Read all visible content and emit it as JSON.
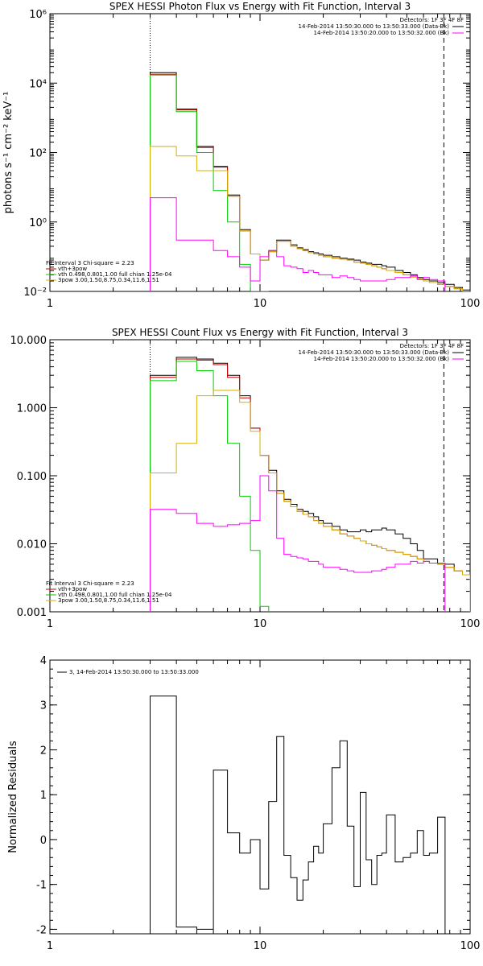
{
  "chart_data": [
    {
      "type": "line",
      "title": "SPEX HESSI Photon Flux vs Energy with Fit Function, Interval 3",
      "xlabel": "",
      "ylabel": "photons s⁻¹ cm⁻² keV⁻¹",
      "xscale": "log",
      "yscale": "log",
      "xlim": [
        1,
        100
      ],
      "ylim": [
        0.01,
        1000000
      ],
      "x_ticks": [
        1,
        10,
        100
      ],
      "x_tick_labels": [
        "1",
        "10",
        "100"
      ],
      "y_ticks": [
        0.01,
        1,
        100,
        10000,
        1000000
      ],
      "y_tick_labels": [
        "10⁻²",
        "10⁰",
        "10²",
        "10⁴",
        "10⁶"
      ],
      "edges": [
        3,
        4,
        5,
        6,
        7,
        8,
        9,
        10,
        11,
        12,
        13,
        14,
        15,
        16,
        17,
        18,
        19,
        20,
        22,
        24,
        26,
        28,
        30,
        32,
        34,
        36,
        38,
        40,
        44,
        48,
        52,
        56,
        60,
        64,
        70,
        76,
        84,
        92,
        100
      ],
      "vlines": [
        {
          "x": 3,
          "style": "dotted"
        },
        {
          "x": 75,
          "style": "dashed"
        }
      ],
      "legend_header": [
        "Detectors: 1F 3F 4F 8F"
      ],
      "legend": [
        {
          "text": "14-Feb-2014 13:50:30.000 to 13:50:33.000 (Data-Bk)",
          "color": "#000000"
        },
        {
          "text": "14-Feb-2014 13:50:20.000 to 13:50:32.000 (Bk)",
          "color": "#ff00ff"
        }
      ],
      "fit_info": {
        "title": "Fit Interval 3    Chi-square = 2.23",
        "lines": [
          {
            "text": "vth+3pow",
            "color": "#cc0000"
          },
          {
            "text": "vth 0.498,0.801,1.00  full chian 1.25e-04",
            "color": "#00cc00"
          },
          {
            "text": "3pow 3.00,1.50,8.75,0.34,11.6,1.51",
            "color": "#d4b000"
          }
        ]
      },
      "series": [
        {
          "color": "#000000",
          "values": [
            20000,
            1800,
            150,
            40,
            6,
            0.6,
            0.12,
            0.08,
            0.15,
            0.3,
            0.3,
            0.22,
            0.18,
            0.16,
            0.14,
            0.13,
            0.12,
            0.11,
            0.1,
            0.09,
            0.085,
            0.08,
            0.07,
            0.065,
            0.06,
            0.06,
            0.055,
            0.05,
            0.04,
            0.035,
            0.03,
            0.025,
            0.022,
            0.02,
            0.018,
            0.016,
            0.013,
            0.011
          ]
        },
        {
          "color": "#cc0000",
          "values": [
            18000,
            1700,
            140,
            38,
            5.5,
            0.55,
            0.12,
            0.08,
            0.14,
            0.28,
            0.28,
            0.2,
            0.17,
            0.15,
            0.13,
            0.12,
            0.11,
            0.1,
            0.09,
            0.085,
            0.08,
            0.07,
            0.065,
            0.06,
            0.055,
            0.05,
            0.045,
            0.04,
            0.035,
            0.03,
            0.026,
            0.023,
            0.02,
            0.018,
            0.016,
            0.014,
            0.012,
            0.01
          ]
        },
        {
          "color": "#00cc00",
          "values": [
            17000,
            1500,
            100,
            8,
            1,
            0.06,
            0.01,
            0.002
          ]
        },
        {
          "color": "#d4b000",
          "values": [
            150,
            80,
            30,
            30,
            5.5,
            0.55,
            0.12,
            0.08,
            0.14,
            0.28,
            0.28,
            0.2,
            0.17,
            0.15,
            0.13,
            0.12,
            0.11,
            0.1,
            0.09,
            0.085,
            0.08,
            0.07,
            0.065,
            0.06,
            0.055,
            0.05,
            0.045,
            0.04,
            0.035,
            0.03,
            0.026,
            0.023,
            0.02,
            0.018,
            0.016,
            0.014,
            0.012,
            0.01
          ]
        },
        {
          "color": "#ff00ff",
          "values": [
            5,
            0.3,
            0.3,
            0.15,
            0.1,
            0.05,
            0.02,
            0.1,
            0.15,
            0.1,
            0.055,
            0.05,
            0.045,
            0.035,
            0.04,
            0.035,
            0.03,
            0.03,
            0.025,
            0.028,
            0.025,
            0.022,
            0.02,
            0.02,
            0.02,
            0.02,
            0.02,
            0.022,
            0.025,
            0.025,
            0.028,
            0.022,
            0.025,
            0.022,
            0.02
          ]
        }
      ]
    },
    {
      "type": "line",
      "title": "SPEX HESSI Count Flux vs Energy with Fit Function, Interval 3",
      "xlabel": "",
      "ylabel": "",
      "xscale": "log",
      "yscale": "log",
      "xlim": [
        1,
        100
      ],
      "ylim": [
        0.001,
        10
      ],
      "x_ticks": [
        1,
        10,
        100
      ],
      "x_tick_labels": [
        "1",
        "10",
        "100"
      ],
      "y_ticks": [
        0.001,
        0.01,
        0.1,
        1,
        10
      ],
      "y_tick_labels": [
        "0.001",
        "0.010",
        "0.100",
        "1.000",
        "10.000"
      ],
      "edges": [
        3,
        4,
        5,
        6,
        7,
        8,
        9,
        10,
        11,
        12,
        13,
        14,
        15,
        16,
        17,
        18,
        19,
        20,
        22,
        24,
        26,
        28,
        30,
        32,
        34,
        36,
        38,
        40,
        44,
        48,
        52,
        56,
        60,
        64,
        70,
        76,
        84,
        92,
        100
      ],
      "vlines": [
        {
          "x": 3,
          "style": "dotted"
        },
        {
          "x": 75,
          "style": "dashed"
        }
      ],
      "legend_header": [
        "Detectors: 1F 3F 4F 8F"
      ],
      "legend": [
        {
          "text": "14-Feb-2014 13:50:30.000 to 13:50:33.000 (Data-Bk)",
          "color": "#000000"
        },
        {
          "text": "14-Feb-2014 13:50:20.000 to 13:50:32.000 (Bk)",
          "color": "#ff00ff"
        }
      ],
      "fit_info": {
        "title": "Fit Interval 3    Chi-square = 2.23",
        "lines": [
          {
            "text": "vth+3pow",
            "color": "#cc0000"
          },
          {
            "text": "vth 0.498,0.801,1.00  full chian 1.25e-04",
            "color": "#00cc00"
          },
          {
            "text": "3pow 3.00,1.50,8.75,0.34,11.6,1.51",
            "color": "#d4b000"
          }
        ]
      },
      "series": [
        {
          "color": "#000000",
          "values": [
            3,
            5.5,
            5.2,
            4.5,
            3,
            1.5,
            0.5,
            0.2,
            0.12,
            0.06,
            0.045,
            0.038,
            0.032,
            0.03,
            0.028,
            0.025,
            0.022,
            0.02,
            0.018,
            0.016,
            0.015,
            0.015,
            0.016,
            0.015,
            0.016,
            0.016,
            0.017,
            0.016,
            0.014,
            0.012,
            0.01,
            0.008,
            0.006,
            0.006,
            0.005,
            0.005,
            0.004,
            0.0035
          ]
        },
        {
          "color": "#cc0000",
          "values": [
            2.8,
            5.2,
            5,
            4.3,
            2.8,
            1.4,
            0.5,
            0.2,
            0.11,
            0.055,
            0.042,
            0.035,
            0.03,
            0.027,
            0.025,
            0.022,
            0.02,
            0.018,
            0.016,
            0.014,
            0.013,
            0.012,
            0.011,
            0.01,
            0.0095,
            0.009,
            0.0085,
            0.008,
            0.0075,
            0.007,
            0.0065,
            0.006,
            0.0055,
            0.0052,
            0.005,
            0.0045,
            0.004,
            0.0035
          ]
        },
        {
          "color": "#00cc00",
          "values": [
            2.5,
            4.8,
            3.5,
            1.5,
            0.3,
            0.05,
            0.008,
            0.0012
          ]
        },
        {
          "color": "#d4b000",
          "values": [
            0.11,
            0.3,
            1.5,
            1.8,
            1.8,
            1.2,
            0.45,
            0.2,
            0.11,
            0.055,
            0.042,
            0.035,
            0.03,
            0.027,
            0.025,
            0.022,
            0.02,
            0.018,
            0.016,
            0.014,
            0.013,
            0.012,
            0.011,
            0.01,
            0.0095,
            0.009,
            0.0085,
            0.008,
            0.0075,
            0.007,
            0.0065,
            0.006,
            0.0055,
            0.0052,
            0.005,
            0.0045,
            0.004,
            0.0035
          ]
        },
        {
          "color": "#ff00ff",
          "values": [
            0.032,
            0.028,
            0.02,
            0.018,
            0.019,
            0.02,
            0.022,
            0.1,
            0.06,
            0.012,
            0.007,
            0.0065,
            0.0062,
            0.006,
            0.0055,
            0.0055,
            0.005,
            0.0045,
            0.0045,
            0.0042,
            0.004,
            0.0038,
            0.0038,
            0.0038,
            0.004,
            0.004,
            0.0042,
            0.0045,
            0.005,
            0.005,
            0.0055,
            0.0052,
            0.0055,
            0.0052,
            0.0052
          ]
        }
      ]
    },
    {
      "type": "line",
      "title": "",
      "xlabel": "",
      "ylabel": "Normalized Residuals",
      "xscale": "log",
      "yscale": "linear",
      "xlim": [
        1,
        100
      ],
      "ylim": [
        -2.1,
        4
      ],
      "x_ticks": [
        1,
        10,
        100
      ],
      "x_tick_labels": [
        "1",
        "10",
        "100"
      ],
      "y_ticks": [
        -2,
        -1,
        0,
        1,
        2,
        3,
        4
      ],
      "y_tick_labels": [
        "-2",
        "-1",
        "0",
        "1",
        "2",
        "3",
        "4"
      ],
      "edges": [
        3,
        4,
        5,
        6,
        7,
        8,
        9,
        10,
        11,
        12,
        13,
        14,
        15,
        16,
        17,
        18,
        19,
        20,
        22,
        24,
        26,
        28,
        30,
        32,
        34,
        36,
        38,
        40,
        44,
        48,
        52,
        56,
        60,
        64,
        70,
        76
      ],
      "legend": [
        {
          "text": "3, 14-Feb-2014 13:50:30.000 to 13:50:33.000",
          "color": "#000000"
        }
      ],
      "series": [
        {
          "color": "#000000",
          "values": [
            3.2,
            -1.95,
            -2,
            1.55,
            0.15,
            -0.3,
            0,
            -1.1,
            0.85,
            2.3,
            -0.35,
            -0.85,
            -1.35,
            -0.9,
            -0.5,
            -0.15,
            -0.3,
            0.35,
            1.6,
            2.2,
            0.3,
            -1.05,
            1.05,
            -0.45,
            -1,
            -0.35,
            -0.3,
            0.55,
            -0.5,
            -0.4,
            -0.3,
            0.2,
            -0.35,
            -0.3,
            0.5
          ]
        }
      ]
    }
  ]
}
